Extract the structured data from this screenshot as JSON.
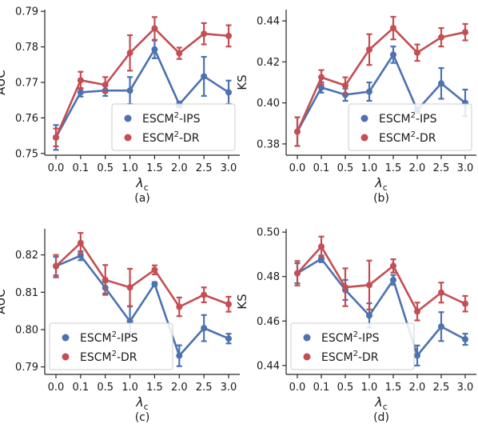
{
  "colors": {
    "ips": "#4c72b0",
    "dr": "#c44e52"
  },
  "chart_data": [
    {
      "type": "line",
      "subplot": "(a)",
      "caption": "(a)",
      "xlabel": "λc",
      "ylabel": "AUC",
      "categories": [
        "0.0",
        "0.1",
        "0.5",
        "1.0",
        "1.5",
        "2.0",
        "2.5",
        "3.0"
      ],
      "yticks": [
        "0.75",
        "0.76",
        "0.77",
        "0.78",
        "0.79"
      ],
      "ylim": [
        0.7495,
        0.7905
      ],
      "legend": "lower-right",
      "series": [
        {
          "name": "ESCM2-IPS",
          "values": [
            0.7545,
            0.7672,
            0.7677,
            0.7677,
            0.7793,
            0.7638,
            0.7717,
            0.7672
          ],
          "errors": [
            0.0035,
            0.0012,
            0.0015,
            0.0038,
            0.0025,
            0.0008,
            0.0055,
            0.0033
          ]
        },
        {
          "name": "ESCM2-DR",
          "values": [
            0.7545,
            0.7706,
            0.7693,
            0.7783,
            0.7852,
            0.7782,
            0.7837,
            0.7831
          ],
          "errors": [
            0.0025,
            0.0024,
            0.0022,
            0.005,
            0.0032,
            0.0016,
            0.003,
            0.003
          ]
        }
      ]
    },
    {
      "type": "line",
      "subplot": "(b)",
      "caption": "(b)",
      "xlabel": "λc",
      "ylabel": "KS",
      "categories": [
        "0.0",
        "0.1",
        "0.5",
        "1.0",
        "1.5",
        "2.0",
        "2.5",
        "3.0"
      ],
      "yticks": [
        "0.38",
        "0.40",
        "0.42",
        "0.44"
      ],
      "ylim": [
        0.3745,
        0.4455
      ],
      "legend": "lower-right",
      "series": [
        {
          "name": "ESCM2-IPS",
          "values": [
            0.386,
            0.4075,
            0.404,
            0.4055,
            0.4235,
            0.3965,
            0.4095,
            0.4
          ],
          "errors": [
            0.007,
            0.0025,
            0.003,
            0.0045,
            0.004,
            0.0015,
            0.0075,
            0.0065
          ]
        },
        {
          "name": "ESCM2-DR",
          "values": [
            0.386,
            0.4125,
            0.4085,
            0.426,
            0.4365,
            0.4245,
            0.432,
            0.4345
          ],
          "errors": [
            0.007,
            0.0035,
            0.004,
            0.0075,
            0.0055,
            0.004,
            0.0045,
            0.004
          ]
        }
      ]
    },
    {
      "type": "line",
      "subplot": "(c)",
      "caption": "(c)",
      "xlabel": "λc",
      "ylabel": "AUC",
      "categories": [
        "0.0",
        "0.1",
        "0.5",
        "1.0",
        "1.5",
        "2.0",
        "2.5",
        "3.0"
      ],
      "yticks": [
        "0.79",
        "0.80",
        "0.81",
        "0.82"
      ],
      "ylim": [
        0.788,
        0.827
      ],
      "legend": "lower-left",
      "series": [
        {
          "name": "ESCM2-IPS",
          "values": [
            0.817,
            0.8198,
            0.8112,
            0.8022,
            0.8122,
            0.793,
            0.8004,
            0.7976
          ],
          "errors": [
            0.0025,
            0.0012,
            0.0015,
            0.004,
            0.0005,
            0.0028,
            0.0035,
            0.0013
          ]
        },
        {
          "name": "ESCM2-DR",
          "values": [
            0.817,
            0.8232,
            0.8133,
            0.8113,
            0.816,
            0.8061,
            0.8093,
            0.8068
          ],
          "errors": [
            0.003,
            0.0027,
            0.004,
            0.005,
            0.0012,
            0.0025,
            0.002,
            0.002
          ]
        }
      ]
    },
    {
      "type": "line",
      "subplot": "(d)",
      "caption": "(d)",
      "xlabel": "λc",
      "ylabel": "KS",
      "categories": [
        "0.0",
        "0.1",
        "0.5",
        "1.0",
        "1.5",
        "2.0",
        "2.5",
        "3.0"
      ],
      "yticks": [
        "0.44",
        "0.46",
        "0.48",
        "0.50"
      ],
      "ylim": [
        0.436,
        0.5015
      ],
      "legend": "lower-left",
      "series": [
        {
          "name": "ESCM2-IPS",
          "values": [
            0.4815,
            0.488,
            0.474,
            0.4625,
            0.4785,
            0.4445,
            0.4575,
            0.4518
          ],
          "errors": [
            0.0045,
            0.0015,
            0.0045,
            0.0055,
            0.0022,
            0.0045,
            0.0065,
            0.0025
          ]
        },
        {
          "name": "ESCM2-DR",
          "values": [
            0.4815,
            0.4935,
            0.4752,
            0.4762,
            0.4848,
            0.4643,
            0.4728,
            0.4678
          ],
          "errors": [
            0.0055,
            0.0045,
            0.0085,
            0.011,
            0.003,
            0.004,
            0.0045,
            0.0035
          ]
        }
      ]
    }
  ]
}
